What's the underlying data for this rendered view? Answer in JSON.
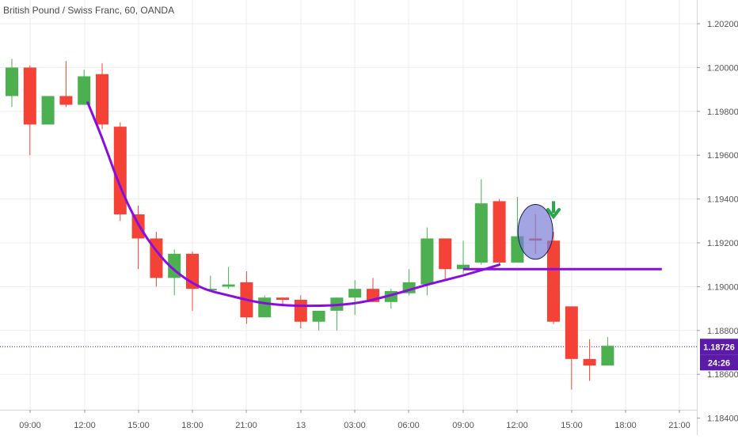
{
  "chart_data": {
    "type": "candlestick",
    "title": "British Pound / Swiss Franc, 60, OANDA",
    "x_tick_labels": [
      "09:00",
      "12:00",
      "15:00",
      "18:00",
      "21:00",
      "13",
      "03:00",
      "06:00",
      "09:00",
      "12:00",
      "15:00",
      "18:00",
      "21:00"
    ],
    "y_tick_labels": [
      "1.20200",
      "1.20000",
      "1.19800",
      "1.19600",
      "1.19400",
      "1.19200",
      "1.19000",
      "1.18800",
      "1.18600",
      "1.18400"
    ],
    "y_ticks": [
      1.202,
      1.2,
      1.198,
      1.196,
      1.194,
      1.192,
      1.19,
      1.188,
      1.186,
      1.184
    ],
    "ylim": [
      1.1839,
      1.2025
    ],
    "grid": true,
    "candles": [
      {
        "o": 1.1987,
        "h": 1.2004,
        "l": 1.1982,
        "c": 1.2
      },
      {
        "o": 1.2,
        "h": 1.2001,
        "l": 1.196,
        "c": 1.1974
      },
      {
        "o": 1.1974,
        "h": 1.1987,
        "l": 1.1974,
        "c": 1.1987
      },
      {
        "o": 1.1987,
        "h": 1.2003,
        "l": 1.1982,
        "c": 1.1983
      },
      {
        "o": 1.1983,
        "h": 1.1999,
        "l": 1.1983,
        "c": 1.1996
      },
      {
        "o": 1.1997,
        "h": 1.2002,
        "l": 1.1972,
        "c": 1.1974
      },
      {
        "o": 1.1973,
        "h": 1.1975,
        "l": 1.193,
        "c": 1.1933
      },
      {
        "o": 1.1933,
        "h": 1.1937,
        "l": 1.1908,
        "c": 1.1922
      },
      {
        "o": 1.1922,
        "h": 1.1925,
        "l": 1.19,
        "c": 1.1904
      },
      {
        "o": 1.1904,
        "h": 1.1917,
        "l": 1.1896,
        "c": 1.1915
      },
      {
        "o": 1.1915,
        "h": 1.1916,
        "l": 1.1889,
        "c": 1.1899
      },
      {
        "o": 1.1899,
        "h": 1.1905,
        "l": 1.1898,
        "c": 1.1899
      },
      {
        "o": 1.19,
        "h": 1.1909,
        "l": 1.1899,
        "c": 1.1901
      },
      {
        "o": 1.1902,
        "h": 1.1907,
        "l": 1.1883,
        "c": 1.1886
      },
      {
        "o": 1.1886,
        "h": 1.1896,
        "l": 1.1886,
        "c": 1.1895
      },
      {
        "o": 1.1895,
        "h": 1.1895,
        "l": 1.1891,
        "c": 1.1894
      },
      {
        "o": 1.1894,
        "h": 1.1896,
        "l": 1.1881,
        "c": 1.1884
      },
      {
        "o": 1.1884,
        "h": 1.1889,
        "l": 1.188,
        "c": 1.1889
      },
      {
        "o": 1.1889,
        "h": 1.1895,
        "l": 1.188,
        "c": 1.1895
      },
      {
        "o": 1.1895,
        "h": 1.1903,
        "l": 1.1887,
        "c": 1.1899
      },
      {
        "o": 1.1899,
        "h": 1.1904,
        "l": 1.1893,
        "c": 1.1893
      },
      {
        "o": 1.1893,
        "h": 1.1899,
        "l": 1.189,
        "c": 1.1898
      },
      {
        "o": 1.1897,
        "h": 1.1908,
        "l": 1.1896,
        "c": 1.1902
      },
      {
        "o": 1.1901,
        "h": 1.1927,
        "l": 1.1896,
        "c": 1.1922
      },
      {
        "o": 1.1922,
        "h": 1.1922,
        "l": 1.1903,
        "c": 1.1908
      },
      {
        "o": 1.1908,
        "h": 1.1921,
        "l": 1.1906,
        "c": 1.191
      },
      {
        "o": 1.1911,
        "h": 1.1949,
        "l": 1.191,
        "c": 1.1938
      },
      {
        "o": 1.1939,
        "h": 1.194,
        "l": 1.191,
        "c": 1.1911
      },
      {
        "o": 1.1911,
        "h": 1.1941,
        "l": 1.1911,
        "c": 1.1923
      },
      {
        "o": 1.1922,
        "h": 1.1933,
        "l": 1.1915,
        "c": 1.1921
      },
      {
        "o": 1.1921,
        "h": 1.1925,
        "l": 1.1883,
        "c": 1.1884
      },
      {
        "o": 1.1891,
        "h": 1.1891,
        "l": 1.1853,
        "c": 1.1867
      },
      {
        "o": 1.1867,
        "h": 1.1876,
        "l": 1.1857,
        "c": 1.1864
      },
      {
        "o": 1.1864,
        "h": 1.1877,
        "l": 1.1864,
        "c": 1.1873
      }
    ],
    "colors": {
      "up": "#4caf50",
      "down": "#f44336",
      "curve": "#8a0de0",
      "annotation_arrow": "#2aa748",
      "circle_fill": "#7b7fd6",
      "price_tag": "#5b1aa8",
      "grid": "#eeeeee"
    },
    "curve_points": [
      {
        "candle": 4.2,
        "price": 1.1984
      },
      {
        "candle": 5.0,
        "price": 1.1968
      },
      {
        "candle": 6.0,
        "price": 1.1945
      },
      {
        "candle": 7.0,
        "price": 1.1928
      },
      {
        "candle": 8.0,
        "price": 1.1916
      },
      {
        "candle": 9.0,
        "price": 1.1907
      },
      {
        "candle": 10.5,
        "price": 1.1899
      },
      {
        "candle": 12.0,
        "price": 1.1896
      },
      {
        "candle": 14.0,
        "price": 1.1892
      },
      {
        "candle": 16.5,
        "price": 1.1891
      },
      {
        "candle": 19.0,
        "price": 1.1892
      },
      {
        "candle": 21.0,
        "price": 1.1896
      },
      {
        "candle": 23.0,
        "price": 1.1901
      },
      {
        "candle": 25.0,
        "price": 1.1905
      },
      {
        "candle": 27.0,
        "price": 1.191
      }
    ],
    "neckline": {
      "start_candle": 25.0,
      "end_candle": 36.0,
      "price": 1.1908
    },
    "circle_annotation": {
      "candle": 29.0,
      "price": 1.1925,
      "price_radius": 0.00125
    },
    "arrow_annotation": {
      "candle": 30.0,
      "price_top": 1.1939,
      "price_bottom": 1.1933
    },
    "current_price": {
      "price": 1.18726,
      "label": "1.18726",
      "countdown": "24:26"
    }
  }
}
